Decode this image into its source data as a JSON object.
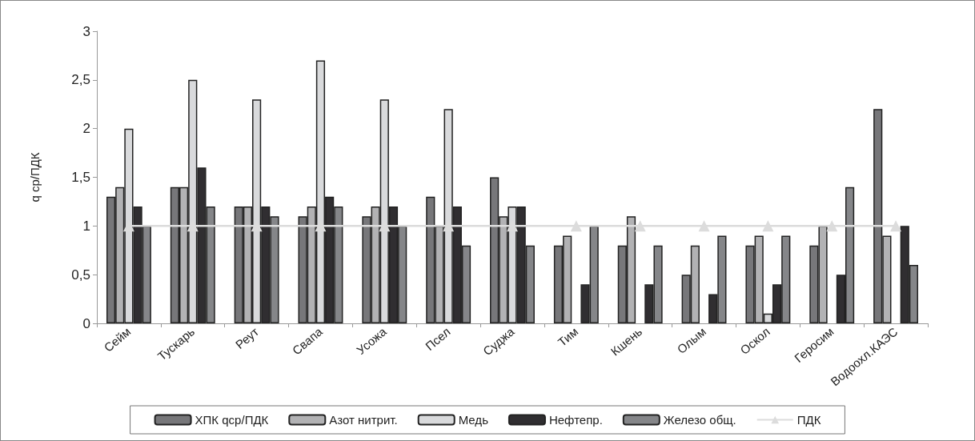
{
  "chart_data": {
    "type": "bar",
    "ylabel": "q ср/ПДК",
    "categories": [
      "Сейм",
      "Тускарь",
      "Реут",
      "Свапа",
      "Усожа",
      "Псел",
      "Суджа",
      "Тим",
      "Кшень",
      "Олым",
      "Оскол",
      "Геросим",
      "Водоохл.КАЭС"
    ],
    "series": [
      {
        "name": "ХПК qср/ПДК",
        "color": "#77777a",
        "values": [
          1.3,
          1.4,
          1.2,
          1.1,
          1.1,
          1.3,
          1.5,
          0.8,
          0.8,
          0.5,
          0.8,
          0.8,
          2.2
        ]
      },
      {
        "name": "Азот нитрит.",
        "color": "#b2b2b4",
        "values": [
          1.4,
          1.4,
          1.2,
          1.2,
          1.2,
          1.0,
          1.1,
          0.9,
          1.1,
          0.8,
          0.9,
          1.0,
          0.9
        ]
      },
      {
        "name": "Медь",
        "color": "#d9dadc",
        "values": [
          2.0,
          2.5,
          2.3,
          2.7,
          2.3,
          2.2,
          1.2,
          null,
          null,
          null,
          0.1,
          null,
          null
        ]
      },
      {
        "name": "Нефтепр.",
        "color": "#302e31",
        "values": [
          1.2,
          1.6,
          1.2,
          1.3,
          1.2,
          1.2,
          1.2,
          0.4,
          0.4,
          0.3,
          0.4,
          0.5,
          1.0
        ]
      },
      {
        "name": "Железо общ.",
        "color": "#858689",
        "values": [
          1.0,
          1.2,
          1.1,
          1.2,
          1.0,
          0.8,
          0.8,
          1.0,
          0.8,
          0.9,
          0.9,
          1.4,
          0.6
        ]
      },
      {
        "name": "ПДК",
        "type": "line",
        "color": "#dcdcdc",
        "marker": "triangle",
        "values": [
          1,
          1,
          1,
          1,
          1,
          1,
          1,
          1,
          1,
          1,
          1,
          1,
          1
        ]
      }
    ],
    "ylim": [
      0,
      3
    ],
    "yticks": [
      0,
      {
        "value": 0.5,
        "label": "0,5"
      },
      1,
      {
        "value": 1.5,
        "label": "1,5"
      },
      2,
      {
        "value": 2.5,
        "label": "2,5"
      },
      3
    ],
    "grid": false,
    "legend": "bottom"
  }
}
